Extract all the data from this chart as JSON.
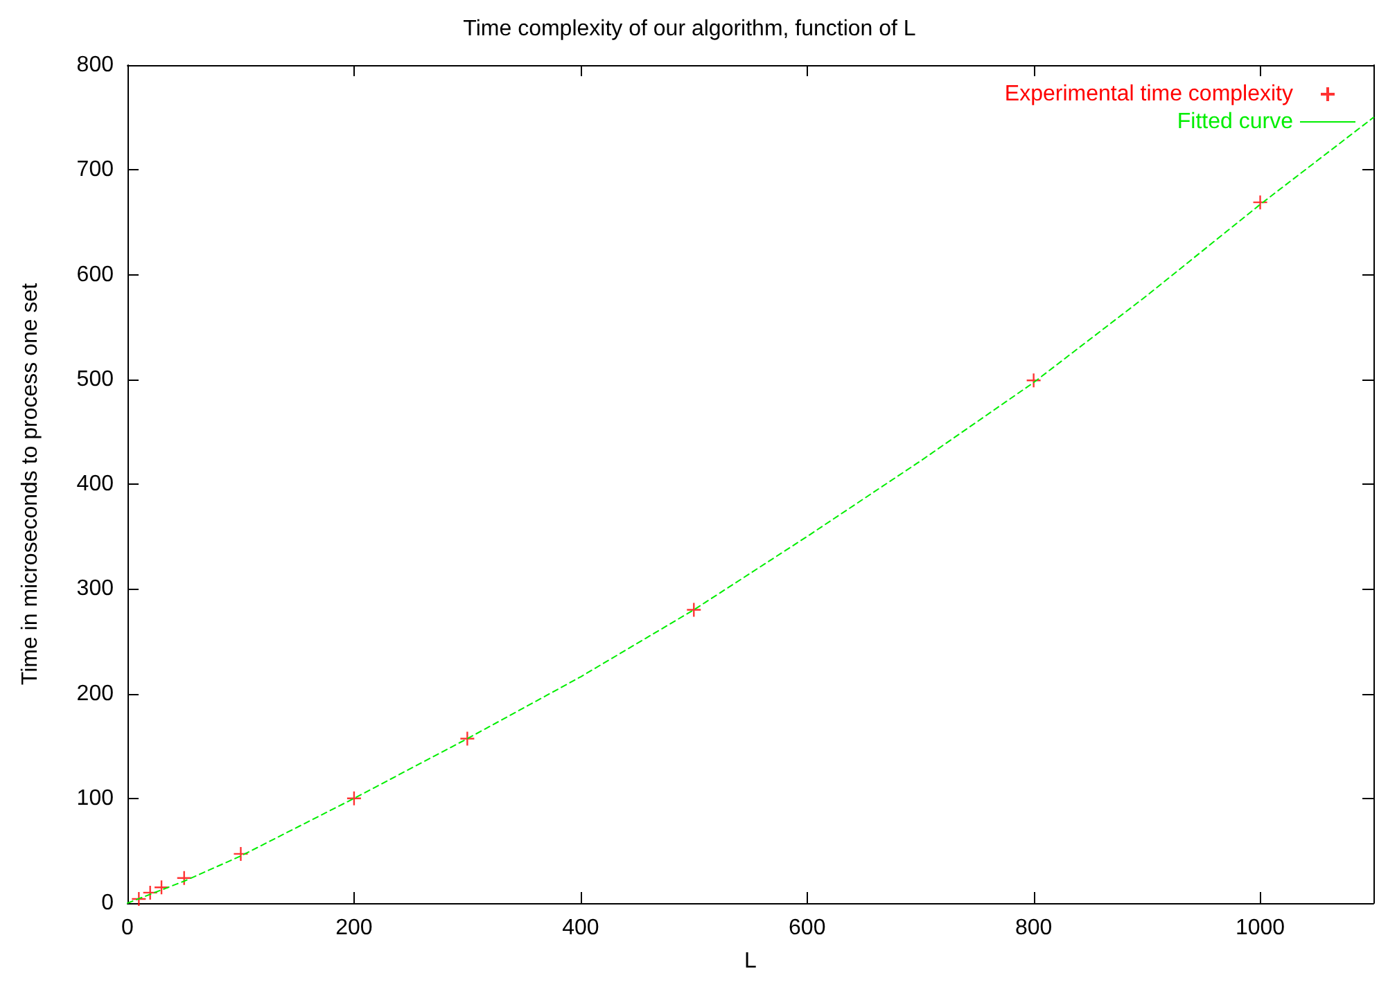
{
  "chart_data": {
    "type": "scatter",
    "title": "Time complexity of our algorithm, function of L",
    "xlabel": "L",
    "ylabel": "Time in microseconds to process one set",
    "xlim": [
      0,
      1100
    ],
    "xticks": [
      0,
      200,
      400,
      600,
      800,
      1000
    ],
    "ylim": [
      0,
      800
    ],
    "yticks": [
      0,
      100,
      200,
      300,
      400,
      500,
      600,
      700,
      800
    ],
    "grid": false,
    "legend": "top right",
    "series": [
      {
        "name": "Experimental time complexity",
        "color": "#ff0000",
        "marker": "cross",
        "x": [
          10,
          20,
          30,
          50,
          100,
          200,
          300,
          500,
          800,
          1000
        ],
        "values": [
          4,
          10,
          15,
          24,
          47,
          100,
          157,
          280,
          499,
          669
        ]
      },
      {
        "name": "Fitted curve",
        "type": "line",
        "color": "#00ee00",
        "marker": "none",
        "line_style": "dashed",
        "x": [
          0,
          50,
          100,
          200,
          300,
          400,
          500,
          600,
          700,
          800,
          900,
          1000,
          1100
        ],
        "values": [
          0,
          21,
          45,
          100,
          157,
          216,
          280,
          350,
          422,
          497,
          580,
          667,
          750
        ]
      }
    ]
  }
}
